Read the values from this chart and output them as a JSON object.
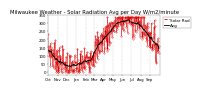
{
  "title": "Milwaukee Weather - Solar Radiation Avg per Day W/m2/minute",
  "title_fontsize": 3.8,
  "background_color": "#ffffff",
  "plot_bg_color": "#ffffff",
  "grid_color": "#aaaaaa",
  "line1_color": "#dd0000",
  "line2_color": "#000000",
  "ylim": [
    -20,
    340
  ],
  "tick_fontsize": 2.8,
  "legend_fontsize": 3.0,
  "legend_labels": [
    "Solar Rad",
    "Avg"
  ],
  "n_points": 365,
  "months": [
    "Oct",
    "Nov",
    "Dec",
    "Jan",
    "Feb",
    "Mar",
    "Apr",
    "May",
    "Jun",
    "Jul",
    "Aug",
    "Sep"
  ],
  "month_positions": [
    0,
    31,
    61,
    92,
    123,
    151,
    182,
    212,
    243,
    273,
    304,
    334
  ],
  "yticks": [
    0,
    50,
    100,
    150,
    200,
    250,
    300,
    350
  ],
  "amplitude": 150,
  "baseline": 175,
  "noise_std": 50,
  "seed": 7
}
